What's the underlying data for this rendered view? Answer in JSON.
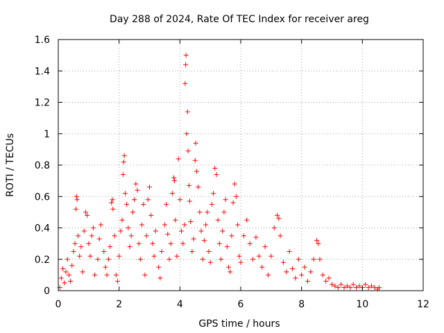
{
  "chart_data": {
    "type": "scatter",
    "title": "Day 288 of 2024, Rate Of TEC Index for receiver areg",
    "xlabel": "GPS time / hours",
    "ylabel": "ROTI / TECUs",
    "xlim": [
      0,
      12
    ],
    "ylim": [
      0,
      1.6
    ],
    "xticks": [
      0,
      2,
      4,
      6,
      8,
      10,
      12
    ],
    "xtick_labels": [
      "0",
      "2",
      "4",
      "6",
      "8",
      "10",
      "12"
    ],
    "yticks": [
      0,
      0.2,
      0.4,
      0.6,
      0.8,
      1,
      1.2,
      1.4,
      1.6
    ],
    "ytick_labels": [
      "0",
      "0.2",
      "0.4",
      "0.6",
      "0.8",
      "1",
      "1.2",
      "1.4",
      "1.6"
    ],
    "grid": true,
    "marker": "plus",
    "color": "#ff0000",
    "series": [
      {
        "name": "ROTI",
        "points": [
          [
            0.05,
            0.02
          ],
          [
            0.1,
            0.08
          ],
          [
            0.15,
            0.14
          ],
          [
            0.2,
            0.05
          ],
          [
            0.25,
            0.12
          ],
          [
            0.3,
            0.2
          ],
          [
            0.35,
            0.1
          ],
          [
            0.4,
            0.06
          ],
          [
            0.45,
            0.16
          ],
          [
            0.5,
            0.25
          ],
          [
            0.55,
            0.3
          ],
          [
            0.58,
            0.52
          ],
          [
            0.6,
            0.6
          ],
          [
            0.62,
            0.58
          ],
          [
            0.65,
            0.35
          ],
          [
            0.7,
            0.22
          ],
          [
            0.75,
            0.28
          ],
          [
            0.8,
            0.12
          ],
          [
            0.85,
            0.38
          ],
          [
            0.9,
            0.5
          ],
          [
            0.95,
            0.48
          ],
          [
            1.0,
            0.3
          ],
          [
            1.05,
            0.22
          ],
          [
            1.1,
            0.35
          ],
          [
            1.15,
            0.4
          ],
          [
            1.2,
            0.1
          ],
          [
            1.3,
            0.2
          ],
          [
            1.35,
            0.33
          ],
          [
            1.4,
            0.42
          ],
          [
            1.5,
            0.25
          ],
          [
            1.55,
            0.15
          ],
          [
            1.6,
            0.1
          ],
          [
            1.65,
            0.2
          ],
          [
            1.7,
            0.28
          ],
          [
            1.75,
            0.56
          ],
          [
            1.78,
            0.58
          ],
          [
            1.8,
            0.52
          ],
          [
            1.85,
            0.35
          ],
          [
            1.9,
            0.1
          ],
          [
            1.95,
            0.06
          ],
          [
            2.0,
            0.22
          ],
          [
            2.05,
            0.38
          ],
          [
            2.1,
            0.45
          ],
          [
            2.13,
            0.74
          ],
          [
            2.15,
            0.82
          ],
          [
            2.17,
            0.86
          ],
          [
            2.2,
            0.62
          ],
          [
            2.25,
            0.55
          ],
          [
            2.3,
            0.4
          ],
          [
            2.35,
            0.28
          ],
          [
            2.4,
            0.35
          ],
          [
            2.45,
            0.5
          ],
          [
            2.5,
            0.58
          ],
          [
            2.55,
            0.68
          ],
          [
            2.6,
            0.64
          ],
          [
            2.65,
            0.3
          ],
          [
            2.7,
            0.2
          ],
          [
            2.75,
            0.42
          ],
          [
            2.8,
            0.55
          ],
          [
            2.85,
            0.1
          ],
          [
            2.9,
            0.35
          ],
          [
            2.95,
            0.58
          ],
          [
            3.0,
            0.66
          ],
          [
            3.05,
            0.48
          ],
          [
            3.1,
            0.3
          ],
          [
            3.15,
            0.22
          ],
          [
            3.2,
            0.38
          ],
          [
            3.3,
            0.15
          ],
          [
            3.35,
            0.08
          ],
          [
            3.4,
            0.25
          ],
          [
            3.5,
            0.42
          ],
          [
            3.55,
            0.55
          ],
          [
            3.6,
            0.36
          ],
          [
            3.65,
            0.2
          ],
          [
            3.7,
            0.3
          ],
          [
            3.75,
            0.62
          ],
          [
            3.8,
            0.72
          ],
          [
            3.82,
            0.7
          ],
          [
            3.85,
            0.45
          ],
          [
            3.9,
            0.22
          ],
          [
            3.95,
            0.84
          ],
          [
            4.0,
            0.58
          ],
          [
            4.05,
            0.38
          ],
          [
            4.1,
            0.3
          ],
          [
            4.15,
            0.42
          ],
          [
            4.17,
            1.32
          ],
          [
            4.19,
            1.44
          ],
          [
            4.2,
            1.5
          ],
          [
            4.22,
            1.0
          ],
          [
            4.25,
            1.14
          ],
          [
            4.27,
            0.89
          ],
          [
            4.3,
            0.67
          ],
          [
            4.32,
            0.57
          ],
          [
            4.35,
            0.44
          ],
          [
            4.4,
            0.25
          ],
          [
            4.45,
            0.33
          ],
          [
            4.5,
            0.83
          ],
          [
            4.52,
            0.94
          ],
          [
            4.55,
            0.76
          ],
          [
            4.6,
            0.66
          ],
          [
            4.65,
            0.5
          ],
          [
            4.7,
            0.38
          ],
          [
            4.75,
            0.2
          ],
          [
            4.8,
            0.32
          ],
          [
            4.85,
            0.42
          ],
          [
            4.9,
            0.5
          ],
          [
            4.95,
            0.25
          ],
          [
            5.0,
            0.18
          ],
          [
            5.05,
            0.55
          ],
          [
            5.1,
            0.62
          ],
          [
            5.15,
            0.78
          ],
          [
            5.2,
            0.74
          ],
          [
            5.25,
            0.45
          ],
          [
            5.3,
            0.3
          ],
          [
            5.35,
            0.2
          ],
          [
            5.4,
            0.38
          ],
          [
            5.45,
            0.5
          ],
          [
            5.5,
            0.58
          ],
          [
            5.55,
            0.28
          ],
          [
            5.6,
            0.15
          ],
          [
            5.65,
            0.12
          ],
          [
            5.7,
            0.35
          ],
          [
            5.75,
            0.56
          ],
          [
            5.8,
            0.68
          ],
          [
            5.85,
            0.6
          ],
          [
            5.9,
            0.42
          ],
          [
            5.95,
            0.22
          ],
          [
            6.0,
            0.18
          ],
          [
            6.1,
            0.35
          ],
          [
            6.2,
            0.45
          ],
          [
            6.3,
            0.3
          ],
          [
            6.4,
            0.2
          ],
          [
            6.5,
            0.34
          ],
          [
            6.6,
            0.22
          ],
          [
            6.7,
            0.15
          ],
          [
            6.8,
            0.28
          ],
          [
            6.9,
            0.1
          ],
          [
            7.0,
            0.22
          ],
          [
            7.1,
            0.4
          ],
          [
            7.2,
            0.48
          ],
          [
            7.25,
            0.46
          ],
          [
            7.3,
            0.35
          ],
          [
            7.4,
            0.18
          ],
          [
            7.5,
            0.12
          ],
          [
            7.6,
            0.25
          ],
          [
            7.7,
            0.14
          ],
          [
            7.8,
            0.08
          ],
          [
            7.9,
            0.2
          ],
          [
            8.0,
            0.1
          ],
          [
            8.1,
            0.15
          ],
          [
            8.2,
            0.06
          ],
          [
            8.3,
            0.12
          ],
          [
            8.4,
            0.2
          ],
          [
            8.5,
            0.32
          ],
          [
            8.55,
            0.3
          ],
          [
            8.6,
            0.2
          ],
          [
            8.7,
            0.1
          ],
          [
            8.8,
            0.06
          ],
          [
            8.9,
            0.08
          ],
          [
            9.0,
            0.04
          ],
          [
            9.1,
            0.03
          ],
          [
            9.2,
            0.02
          ],
          [
            9.3,
            0.04
          ],
          [
            9.4,
            0.02
          ],
          [
            9.5,
            0.03
          ],
          [
            9.6,
            0.02
          ],
          [
            9.7,
            0.04
          ],
          [
            9.8,
            0.02
          ],
          [
            9.9,
            0.03
          ],
          [
            10.0,
            0.02
          ],
          [
            10.1,
            0.04
          ],
          [
            10.2,
            0.02
          ],
          [
            10.3,
            0.03
          ],
          [
            10.4,
            0.02
          ],
          [
            10.5,
            0.01
          ],
          [
            10.55,
            0.02
          ]
        ]
      }
    ]
  }
}
